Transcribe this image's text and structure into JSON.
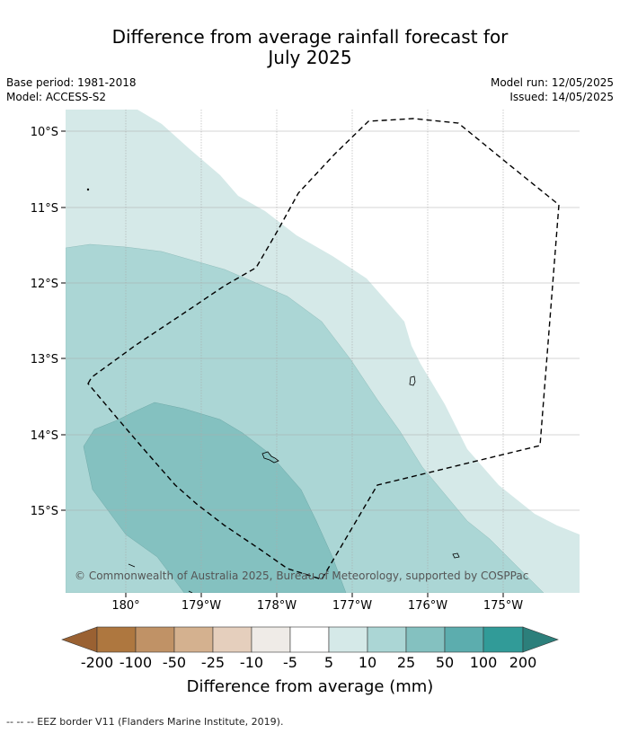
{
  "title_line1": "Difference from average rainfall forecast for",
  "title_line2": "July 2025",
  "meta": {
    "base_period": "Base period: 1981-2018",
    "model": "Model: ACCESS-S2",
    "model_run": "Model run: 12/05/2025",
    "issued": "Issued: 14/05/2025"
  },
  "map": {
    "lat_labels": [
      "10°S",
      "11°S",
      "12°S",
      "13°S",
      "14°S",
      "15°S"
    ],
    "lon_labels": [
      "180°",
      "179°W",
      "178°W",
      "177°W",
      "176°W",
      "175°W"
    ],
    "copyright": "© Commonwealth of Australia 2025, Bureau of Meteorology, supported by COSPPac",
    "boundary_style": "dashed",
    "fill_colors": {
      "5_to_10": "#d5e9e8",
      "10_to_25": "#abd6d5",
      "25_to_50": "#84c1c0"
    }
  },
  "legend": {
    "title": "Difference from average (mm)",
    "tick_labels": [
      "-200",
      "-100",
      "-50",
      "-25",
      "-10",
      "-5",
      "5",
      "10",
      "25",
      "50",
      "100",
      "200"
    ],
    "colors": [
      "#9a6132",
      "#ae773f",
      "#c09266",
      "#d4b18f",
      "#e5cfbd",
      "#efebe7",
      "#ffffff",
      "#d5e9e8",
      "#abd6d5",
      "#84c1c0",
      "#5cadae",
      "#319b98",
      "#2c7f7b"
    ]
  },
  "footer": "--  --  -- EEZ border V11 (Flanders Marine Institute, 2019)."
}
